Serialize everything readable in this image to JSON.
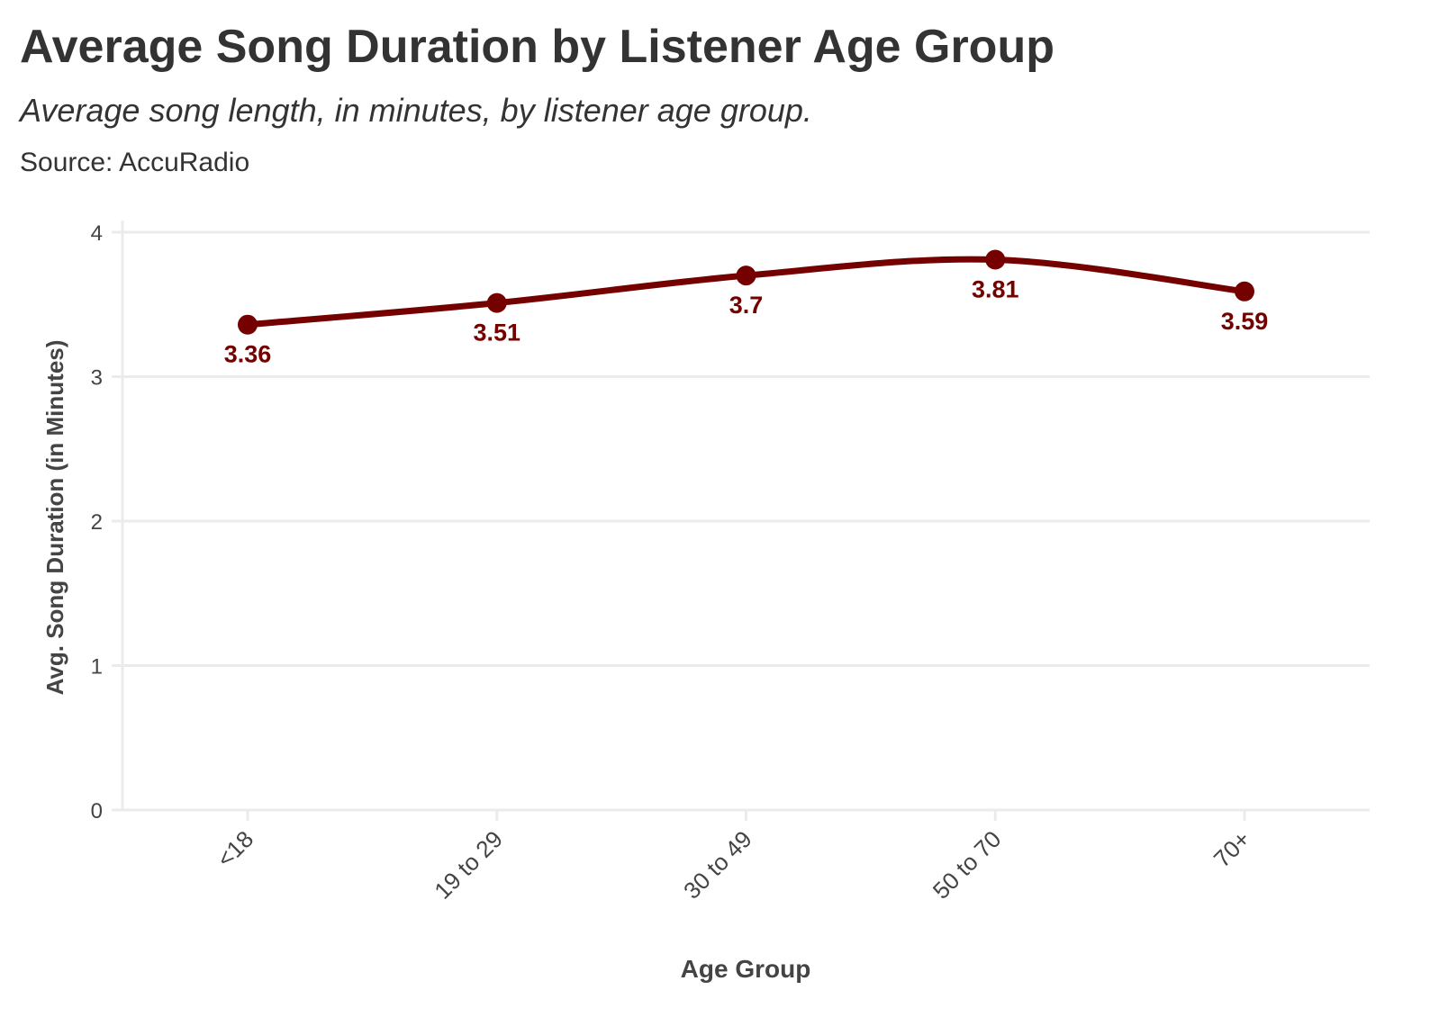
{
  "chart_data": {
    "type": "line",
    "title": "Average Song Duration by Listener Age Group",
    "subtitle": "Average song length, in minutes, by listener age group.",
    "source": "Source: AccuRadio",
    "xlabel": "Age Group",
    "ylabel": "Avg. Song Duration (in Minutes)",
    "categories": [
      "<18",
      "19 to 29",
      "30 to 49",
      "50 to 70",
      "70+"
    ],
    "values": [
      3.36,
      3.51,
      3.7,
      3.81,
      3.59
    ],
    "data_labels": [
      "3.36",
      "3.51",
      "3.7",
      "3.81",
      "3.59"
    ],
    "ylim": [
      0,
      4
    ],
    "yticks": [
      0,
      1,
      2,
      3,
      4
    ],
    "ytick_labels": [
      "0",
      "1",
      "2",
      "3",
      "4"
    ],
    "grid": true,
    "smooth": true,
    "color": "#750000"
  }
}
